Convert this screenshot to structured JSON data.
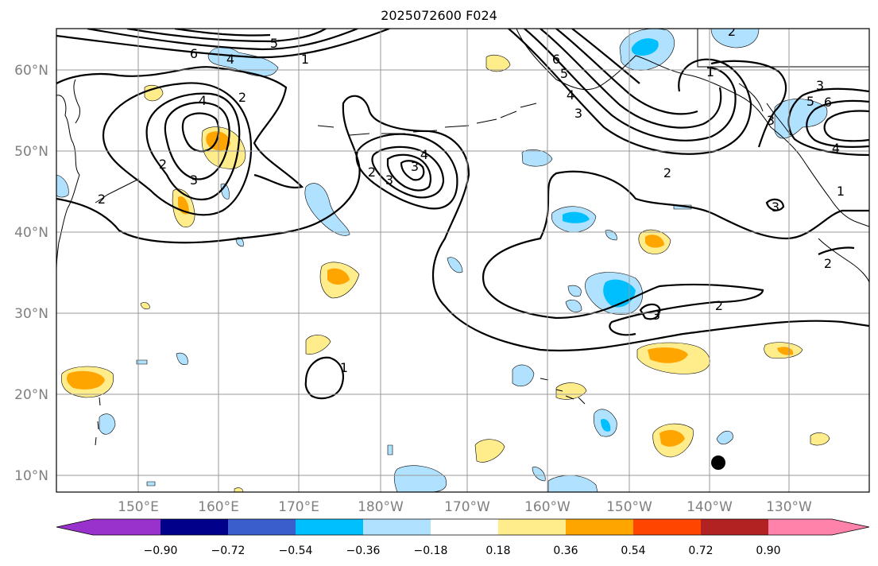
{
  "title": "2025072600 F024",
  "colors": {
    "neg_090": "#9932cc",
    "neg_072": "#00008b",
    "neg_054": "#3a5fcd",
    "neg_036": "#00bfff",
    "neg_018": "#b0e2ff",
    "neutral": "#ffffff",
    "pos_018": "#ffec8b",
    "pos_036": "#ffa500",
    "pos_054": "#ff4500",
    "pos_072": "#b22222",
    "pos_090": "#ff82ab",
    "contour": "#000000",
    "grid": "#999999"
  },
  "axes": {
    "lat_labels": [
      "60°N",
      "50°N",
      "40°N",
      "30°N",
      "20°N",
      "10°N"
    ],
    "lon_labels": [
      "150°E",
      "160°E",
      "170°E",
      "180°W",
      "170°W",
      "160°W",
      "150°W",
      "140°W",
      "130°W"
    ]
  },
  "colorbar": {
    "tick_labels": [
      "−0.90",
      "−0.72",
      "−0.54",
      "−0.36",
      "−0.18",
      "0.18",
      "0.36",
      "0.54",
      "0.72",
      "0.90"
    ]
  },
  "contour_labels": [
    "6",
    "5",
    "4",
    "4",
    "3",
    "2",
    "1",
    "2",
    "3",
    "4",
    "2",
    "3",
    "1",
    "6",
    "5",
    "4",
    "3",
    "2",
    "2",
    "3",
    "3",
    "2",
    "3",
    "5",
    "6",
    "4",
    "3",
    "1",
    "2",
    "2",
    "1"
  ]
}
